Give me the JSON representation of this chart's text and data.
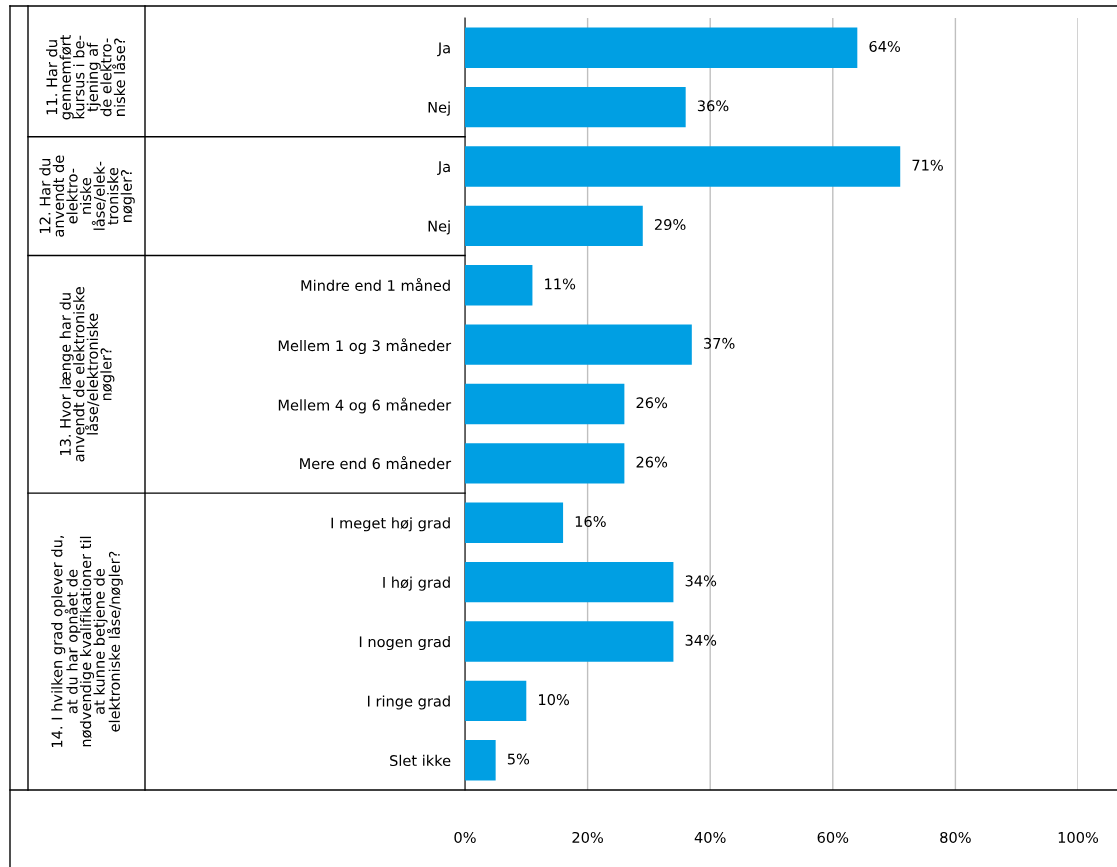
{
  "chart_data": {
    "type": "bar",
    "orientation": "horizontal",
    "categories": [
      "Ja",
      "Nej",
      "Ja",
      "Nej",
      "Mindre end 1 måned",
      "Mellem 1 og 3 måneder",
      "Mellem 4 og 6 måneder",
      "Mere end 6 måneder",
      "I meget høj grad",
      "I høj grad",
      "I nogen grad",
      "I ringe grad",
      "Slet ikke"
    ],
    "values": [
      64,
      36,
      71,
      29,
      11,
      37,
      26,
      26,
      16,
      34,
      34,
      10,
      5
    ],
    "value_labels": [
      "64%",
      "36%",
      "71%",
      "29%",
      "11%",
      "37%",
      "26%",
      "26%",
      "16%",
      "34%",
      "34%",
      "10%",
      "5%"
    ],
    "color": "#009fe3",
    "xlim": [
      0,
      100
    ],
    "xticks": [
      {
        "value": 0,
        "label": "0%"
      },
      {
        "value": 20,
        "label": "20%"
      },
      {
        "value": 40,
        "label": "40%"
      },
      {
        "value": 60,
        "label": "60%"
      },
      {
        "value": 80,
        "label": "80%"
      },
      {
        "value": 100,
        "label": "100%"
      }
    ],
    "grid": "x",
    "annotations": [
      "11. Har du\ngennemført\nkursus i be-\ntjening af\nde elektro-\nniske låse?",
      "12. Har du\nanvendt de\nelektro-\nniske\nlåse/elek-\ntroniske\nnøgler?",
      "13. Hvor længe har du\nanvendt de elektroniske\nlåse/elektroniske\nnøgler?",
      "14. I hvilken grad oplever du,\nat du har opnået de\nnødvendige kvalifikationer til\nat kunne betjene de\nelektroniske låse/nøgler?"
    ]
  }
}
